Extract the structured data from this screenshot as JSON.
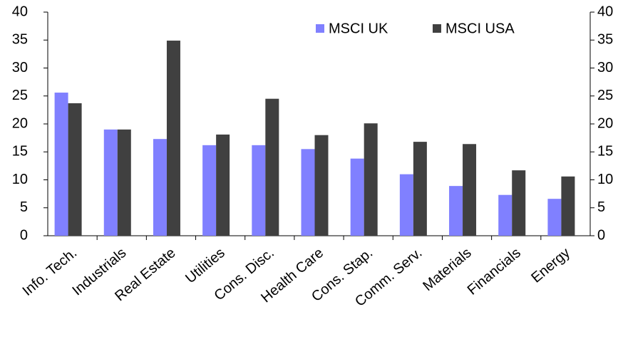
{
  "chart_data": {
    "type": "bar",
    "categories": [
      "Info. Tech.",
      "Industrials",
      "Real Estate",
      "Utilities",
      "Cons. Disc.",
      "Health Care",
      "Cons. Stap.",
      "Comm. Serv.",
      "Materials",
      "Financials",
      "Energy"
    ],
    "series": [
      {
        "name": "MSCI UK",
        "color": "#8080ff",
        "values": [
          25.6,
          19.0,
          17.3,
          16.2,
          16.2,
          15.5,
          13.8,
          11.0,
          8.9,
          7.3,
          6.6
        ]
      },
      {
        "name": "MSCI USA",
        "color": "#404040",
        "values": [
          23.7,
          19.0,
          34.9,
          18.1,
          24.5,
          18.0,
          20.1,
          16.8,
          16.4,
          11.7,
          10.6
        ]
      }
    ],
    "ylim": [
      0,
      40
    ],
    "yticks": [
      0,
      5,
      10,
      15,
      20,
      25,
      30,
      35,
      40
    ],
    "y2lim": [
      0,
      40
    ],
    "y2ticks": [
      0,
      5,
      10,
      15,
      20,
      25,
      30,
      35,
      40
    ],
    "grid": false,
    "legend": "top"
  }
}
